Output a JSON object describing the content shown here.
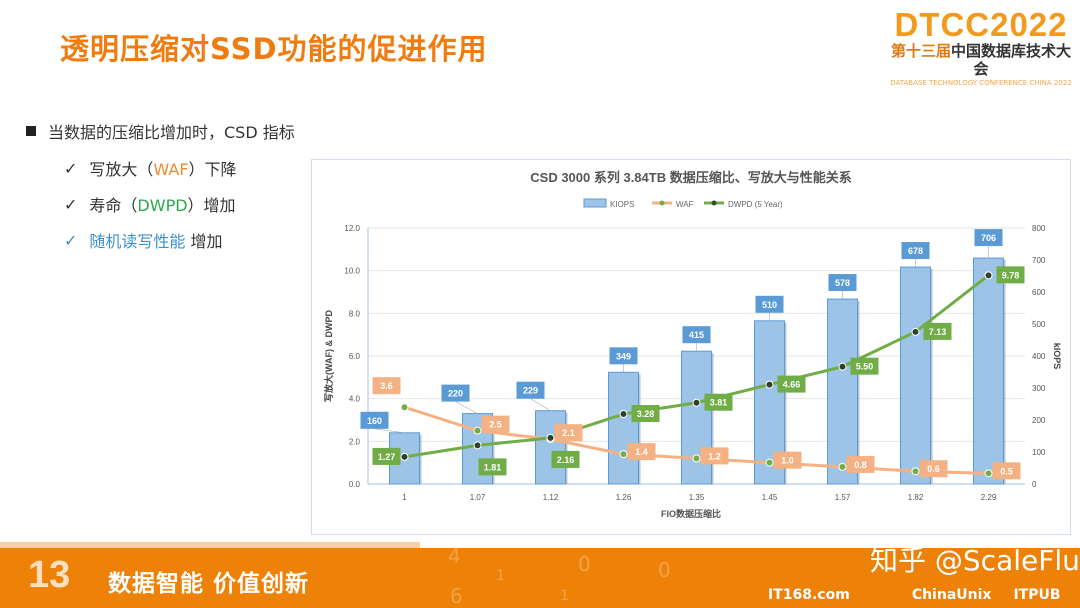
{
  "title": "透明压缩对SSD功能的促进作用",
  "logo": {
    "big": "DTCC2022",
    "cn_prefix": "第十三届",
    "cn_suffix": "中国数据库技术大会",
    "en": "DATABASE TECHNOLOGY CONFERENCE CHINA 2022"
  },
  "bullets": {
    "main": "当数据的压缩比增加时，CSD 指标",
    "items": [
      {
        "check": "✓",
        "pre": "写放大（",
        "key": "WAF",
        "post": "）下降"
      },
      {
        "check": "✓",
        "pre": "寿命（",
        "key": "DWPD",
        "post": "）增加"
      },
      {
        "check": "✓",
        "key": "随机读写性能",
        "post": " 增加"
      }
    ]
  },
  "chart_data": {
    "type": "bar",
    "title": "CSD 3000 系列 3.84TB 数据压缩比、写放大与性能关系",
    "xlabel": "FIO数据压缩比",
    "ylabel": "写放大(WAF) & DWPD",
    "y2label": "kIOPS",
    "ylim": [
      0,
      12
    ],
    "y2lim": [
      0,
      800
    ],
    "yticks": [
      "0.0",
      "2.0",
      "4.0",
      "6.0",
      "8.0",
      "10.0",
      "12.0"
    ],
    "y2ticks": [
      "0",
      "100",
      "200",
      "300",
      "400",
      "500",
      "600",
      "700",
      "800"
    ],
    "categories": [
      "1",
      "1.07",
      "1.12",
      "1.26",
      "1.35",
      "1.45",
      "1.57",
      "1.82",
      "2.29"
    ],
    "legend": [
      "KIOPS",
      "WAF",
      "DWPD (5 Year)"
    ],
    "legend_position": "top",
    "series": [
      {
        "name": "KIOPS",
        "type": "bar",
        "axis": "right",
        "color": "#9dc3e6",
        "values": [
          160,
          220,
          229,
          349,
          415,
          510,
          578,
          678,
          706
        ],
        "labels": [
          "160",
          "220",
          "229",
          "349",
          "415",
          "510",
          "578",
          "678",
          "706"
        ]
      },
      {
        "name": "WAF",
        "type": "line",
        "axis": "left",
        "color": "#f4b183",
        "values": [
          3.6,
          2.5,
          2.1,
          1.4,
          1.2,
          1.0,
          0.8,
          0.6,
          0.5
        ],
        "labels": [
          "3.6",
          "2.5",
          "2.1",
          "1.4",
          "1.2",
          "1.0",
          "0.8",
          "0.6",
          "0.5"
        ]
      },
      {
        "name": "DWPD (5 Year)",
        "type": "line",
        "axis": "left",
        "color": "#70ad47",
        "values": [
          1.27,
          1.81,
          2.16,
          3.28,
          3.81,
          4.66,
          5.5,
          7.13,
          9.78
        ],
        "labels": [
          "1.27",
          "1.81",
          "2.16",
          "3.28",
          "3.81",
          "4.66",
          "5.50",
          "7.13",
          "9.78"
        ]
      }
    ]
  },
  "footer": {
    "edition": "13",
    "slogan": "数据智能  价值创新",
    "watermark": "知乎 @ScaleFlux",
    "sponsors": [
      "IT168.com",
      "ChinaUnix",
      "ITPUB"
    ],
    "digits": [
      "4",
      "1",
      "0",
      "0",
      "6",
      "1"
    ]
  }
}
